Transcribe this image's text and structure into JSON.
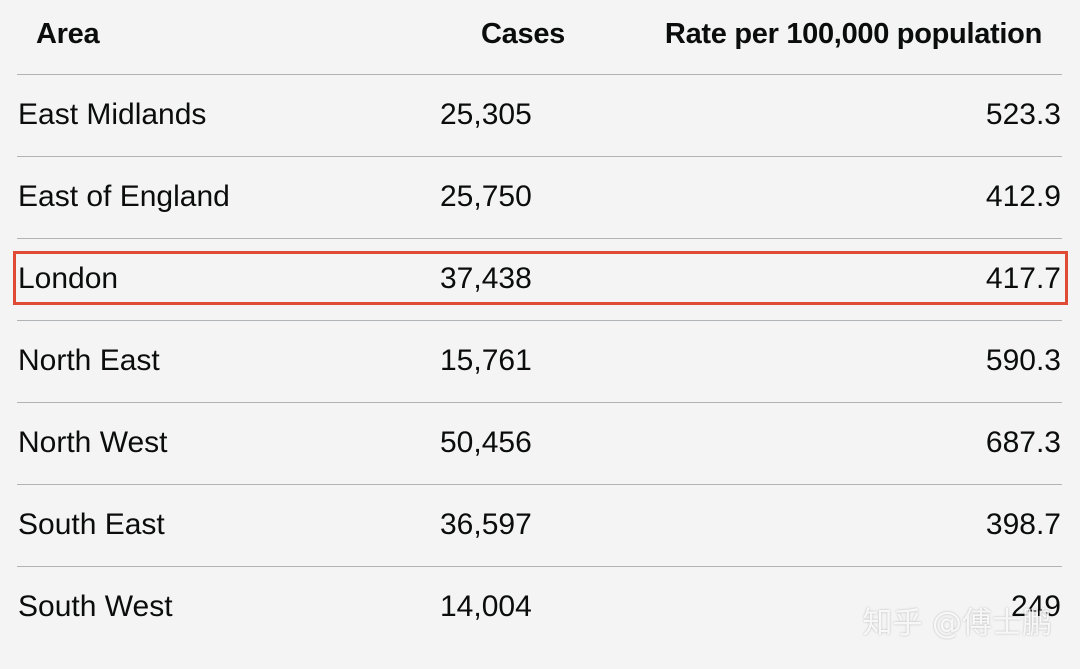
{
  "table": {
    "headers": {
      "area": "Area",
      "cases": "Cases",
      "rate": "Rate per 100,000 population"
    },
    "rows": [
      {
        "area": "East Midlands",
        "cases": "25,305",
        "rate": "523.3"
      },
      {
        "area": "East of England",
        "cases": "25,750",
        "rate": "412.9"
      },
      {
        "area": "London",
        "cases": "37,438",
        "rate": "417.7"
      },
      {
        "area": "North East",
        "cases": "15,761",
        "rate": "590.3"
      },
      {
        "area": "North West",
        "cases": "50,456",
        "rate": "687.3"
      },
      {
        "area": "South East",
        "cases": "36,597",
        "rate": "398.7"
      },
      {
        "area": "South West",
        "cases": "14,004",
        "rate": "249"
      }
    ],
    "highlighted_row": "London",
    "highlight_color": "#e04b35"
  },
  "watermark": {
    "text": "知乎 @傅士鹏"
  }
}
